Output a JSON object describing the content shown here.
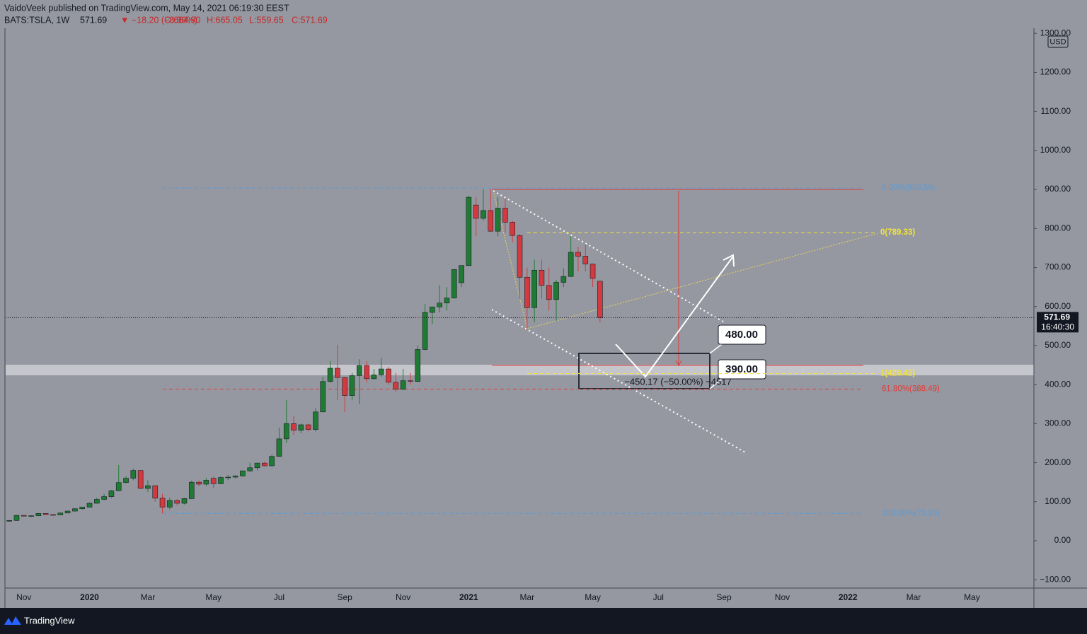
{
  "chart_data": {
    "type": "candlestick",
    "header": {
      "author": "VaidoVeek published on TradingView.com, May 14, 2021 06:19:30 EEST",
      "symbol": "BATS:TSLA, 1W",
      "price": "571.69",
      "change": "▼ −18.20 (−3.09%)",
      "ohlc": [
        "O:664.90",
        "H:665.05",
        "L:559.65",
        "C:571.69"
      ]
    },
    "currency": "USD",
    "brand": "TradingView",
    "price_tag": "571.69",
    "countdown": "16:40:30",
    "up_color": "#1f7a34",
    "down_color": "#d23a3f",
    "grid": false,
    "categories": [
      null,
      null,
      "Nov",
      null,
      null,
      null,
      null,
      null,
      null,
      null,
      null,
      "2020",
      null,
      null,
      null,
      null,
      null,
      null,
      null,
      "Mar",
      null,
      null,
      null,
      null,
      null,
      null,
      null,
      null,
      "May",
      null,
      null,
      null,
      null,
      null,
      null,
      null,
      null,
      "Jul",
      null,
      null,
      null,
      null,
      null,
      null,
      null,
      null,
      "Sep",
      null,
      null,
      null,
      null,
      null,
      null,
      null,
      "Nov",
      null,
      null,
      null,
      null,
      null,
      null,
      null,
      null,
      "2021",
      null,
      null,
      null,
      null,
      null,
      null,
      null,
      "Mar",
      null,
      null,
      null,
      null,
      null,
      null,
      null,
      null,
      "May",
      null,
      null,
      null,
      null,
      null,
      null,
      null,
      null,
      "Jul",
      null,
      null,
      null,
      null,
      null,
      null,
      null,
      null,
      "Sep",
      null,
      null,
      null,
      null,
      null,
      null,
      null,
      "Nov",
      null,
      null,
      null,
      null,
      null,
      null,
      null,
      null,
      "2022",
      null,
      null,
      null,
      null,
      null,
      null,
      null,
      null,
      "Mar",
      null,
      null,
      null,
      null,
      null,
      null,
      null,
      "May",
      null,
      null,
      null,
      null,
      null,
      null,
      null,
      null
    ],
    "open": [
      50,
      52,
      65,
      63,
      64,
      70,
      67,
      66,
      71,
      76,
      82,
      86,
      96,
      106,
      113,
      128,
      149,
      160,
      180,
      134,
      141,
      109,
      86,
      103,
      96,
      108,
      150,
      145,
      160,
      146,
      162,
      163,
      166,
      179,
      187,
      199,
      192,
      216,
      261,
      300,
      283,
      297,
      285,
      330,
      408,
      442,
      418,
      372,
      423,
      449,
      415,
      425,
      440,
      406,
      388,
      410,
      408,
      490,
      585,
      599,
      609,
      622,
      661,
      705,
      860,
      826,
      846,
      793,
      852,
      816,
      782,
      675,
      597,
      693,
      654,
      618,
      662,
      677,
      739,
      729,
      709,
      664.9,
      null,
      null,
      null,
      null,
      null,
      null,
      null,
      null,
      null,
      null,
      null,
      null,
      null,
      null,
      null,
      null,
      null,
      null,
      null,
      null,
      null,
      null,
      null,
      null,
      null,
      null,
      null,
      null,
      null,
      null,
      null,
      null,
      null,
      null,
      null,
      null,
      null,
      null,
      null,
      null,
      null,
      null,
      null,
      null,
      null,
      null,
      null,
      null,
      null,
      null,
      null,
      null,
      null,
      null,
      null,
      null,
      null,
      null,
      null
    ],
    "high": [
      53,
      66,
      66,
      65,
      70,
      71,
      68,
      72,
      77,
      83,
      87,
      98,
      110,
      120,
      130,
      194,
      166,
      185,
      181,
      155,
      142,
      120,
      110,
      107,
      110,
      154,
      154,
      160,
      165,
      165,
      168,
      168,
      180,
      200,
      200,
      202,
      220,
      290,
      360,
      320,
      300,
      300,
      340,
      420,
      460,
      502,
      420,
      430,
      465,
      460,
      440,
      468,
      445,
      430,
      440,
      430,
      500,
      607,
      600,
      654,
      650,
      695,
      705,
      884,
      880,
      900,
      900,
      880,
      877,
      820,
      786,
      700,
      720,
      720,
      700,
      668,
      698,
      780,
      753,
      760,
      710,
      665.05,
      null,
      null,
      null,
      null,
      null,
      null,
      null,
      null,
      null,
      null,
      null,
      null,
      null,
      null,
      null,
      null,
      null,
      null,
      null,
      null,
      null,
      null,
      null,
      null,
      null,
      null,
      null,
      null,
      null,
      null,
      null,
      null,
      null,
      null,
      null,
      null,
      null,
      null,
      null,
      null,
      null,
      null,
      null,
      null,
      null,
      null,
      null,
      null,
      null,
      null,
      null,
      null,
      null,
      null,
      null,
      null,
      null,
      null,
      null
    ],
    "low": [
      49,
      51,
      62,
      61,
      63,
      66,
      64,
      66,
      71,
      75,
      80,
      85,
      95,
      103,
      110,
      127,
      147,
      155,
      133,
      125,
      100,
      70,
      80,
      90,
      93,
      107,
      140,
      140,
      135,
      145,
      155,
      160,
      164,
      176,
      180,
      190,
      190,
      215,
      250,
      270,
      275,
      280,
      280,
      330,
      405,
      360,
      330,
      360,
      350,
      405,
      413,
      420,
      400,
      380,
      386,
      400,
      407,
      488,
      555,
      585,
      590,
      620,
      650,
      705,
      780,
      820,
      790,
      780,
      790,
      765,
      620,
      540,
      560,
      620,
      590,
      563,
      650,
      676,
      690,
      690,
      650,
      559.65,
      null,
      null,
      null,
      null,
      null,
      null,
      null,
      null,
      null,
      null,
      null,
      null,
      null,
      null,
      null,
      null,
      null,
      null,
      null,
      null,
      null,
      null,
      null,
      null,
      null,
      null,
      null,
      null,
      null,
      null,
      null,
      null,
      null,
      null,
      null,
      null,
      null,
      null,
      null,
      null,
      null,
      null,
      null,
      null,
      null,
      null,
      null,
      null,
      null,
      null,
      null,
      null,
      null,
      null,
      null,
      null,
      null,
      null,
      null
    ],
    "close": [
      52,
      65,
      63,
      64,
      70,
      67,
      66,
      71,
      76,
      82,
      86,
      96,
      106,
      113,
      128,
      149,
      160,
      180,
      134,
      141,
      109,
      86,
      103,
      96,
      108,
      150,
      145,
      155,
      146,
      162,
      163,
      166,
      179,
      187,
      199,
      192,
      216,
      261,
      300,
      283,
      297,
      285,
      330,
      408,
      442,
      418,
      372,
      423,
      449,
      415,
      425,
      440,
      406,
      388,
      410,
      408,
      490,
      585,
      599,
      609,
      622,
      695,
      705,
      880,
      826,
      846,
      793,
      852,
      816,
      782,
      675,
      597,
      693,
      654,
      618,
      662,
      677,
      739,
      729,
      709,
      672,
      571.69,
      null,
      null,
      null,
      null,
      null,
      null,
      null,
      null,
      null,
      null,
      null,
      null,
      null,
      null,
      null,
      null,
      null,
      null,
      null,
      null,
      null,
      null,
      null,
      null,
      null,
      null,
      null,
      null,
      null,
      null,
      null,
      null,
      null,
      null,
      null,
      null,
      null,
      null,
      null,
      null,
      null,
      null,
      null,
      null,
      null,
      null,
      null,
      null,
      null,
      null,
      null,
      null,
      null,
      null,
      null,
      null,
      null,
      null,
      null
    ],
    "ylim": [
      -121.3,
      1313
    ],
    "yticks": [
      {
        "value": -100,
        "label": "−100.00"
      },
      {
        "value": 0,
        "label": "0.00"
      },
      {
        "value": 100,
        "label": "100.00"
      },
      {
        "value": 200,
        "label": "200.00"
      },
      {
        "value": 300,
        "label": "300.00"
      },
      {
        "value": 400,
        "label": "400.00"
      },
      {
        "value": 500,
        "label": "500.00"
      },
      {
        "value": 600,
        "label": "600.00"
      },
      {
        "value": 700,
        "label": "700.00"
      },
      {
        "value": 800,
        "label": "800.00"
      },
      {
        "value": 900,
        "label": "900.00"
      },
      {
        "value": 1000,
        "label": "1000.00"
      },
      {
        "value": 1100,
        "label": "1100.00"
      },
      {
        "value": 1200,
        "label": "1200.00"
      },
      {
        "value": 1300,
        "label": "1300.00"
      }
    ],
    "levels": [
      {
        "value": 903.58,
        "label": "0.00%(903.58)",
        "color": "#5b9bd5"
      },
      {
        "value": 789.33,
        "label": "0(789.33)",
        "color": "#f2e33a"
      },
      {
        "value": 428.42,
        "label": "1(428.42)",
        "color": "#f2e33a"
      },
      {
        "value": 388.49,
        "label": "61.80%(388.49)",
        "color": "#e53935"
      },
      {
        "value": 70.1,
        "label": "100.00%(70.10)",
        "color": "#5b9bd5"
      }
    ],
    "annotations": [
      "480.00",
      "390.00",
      "−450.17 (−50.00%) −4517"
    ]
  }
}
